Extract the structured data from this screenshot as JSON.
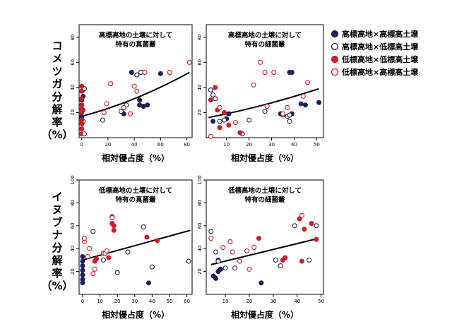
{
  "chart_data": [
    {
      "type": "scatter",
      "title_lines": [
        "高標高地の土壌に対して",
        "特有の真菌叢"
      ],
      "xlabel": "相対優占度（%）",
      "ylabel_lines": [
        "コ",
        "メ",
        "ツ",
        "ガ",
        "分",
        "解",
        "率",
        "（%）"
      ],
      "xlim": [
        -2,
        84
      ],
      "ylim": [
        0,
        90
      ],
      "xticks": [
        0,
        20,
        40,
        60,
        80
      ],
      "yticks": [
        20,
        40,
        60,
        80
      ],
      "trend": {
        "x0": 0,
        "y0": 17,
        "x1": 82,
        "y1": 52,
        "curve": 0.35
      },
      "series": [
        {
          "name": "高標高地×高標高土壌",
          "color": "#1f1f5c",
          "filled": true,
          "points": [
            [
              0,
              15
            ],
            [
              0,
              17
            ],
            [
              0,
              30
            ],
            [
              1,
              33
            ],
            [
              32,
              19
            ],
            [
              38,
              52
            ],
            [
              44,
              26
            ],
            [
              45,
              52
            ],
            [
              44,
              30
            ],
            [
              47,
              25
            ],
            [
              50,
              26
            ],
            [
              60,
              51
            ]
          ]
        },
        {
          "name": "高標高地×低標高土壌",
          "color": "#1f1f5c",
          "filled": false,
          "points": [
            [
              1,
              38
            ],
            [
              2,
              39
            ],
            [
              1,
              13
            ],
            [
              16,
              14
            ],
            [
              30,
              21
            ],
            [
              34,
              26
            ],
            [
              42,
              50
            ],
            [
              45,
              52
            ]
          ]
        },
        {
          "name": "低標高地×低標高土壌",
          "color": "#cc1f2a",
          "filled": true,
          "points": [
            [
              0,
              3
            ],
            [
              0,
              7
            ],
            [
              0,
              11
            ],
            [
              0,
              14
            ],
            [
              0,
              20
            ],
            [
              0,
              23
            ],
            [
              0,
              26
            ],
            [
              0,
              31
            ],
            [
              0,
              37
            ],
            [
              0,
              41
            ],
            [
              1,
              22
            ]
          ]
        },
        {
          "name": "低標高地×高標高土壌",
          "color": "#cc1f2a",
          "filled": false,
          "points": [
            [
              2,
              3
            ],
            [
              17,
              20
            ],
            [
              19,
              27
            ],
            [
              22,
              43
            ],
            [
              32,
              24
            ],
            [
              37,
              19
            ],
            [
              40,
              41
            ],
            [
              42,
              37
            ],
            [
              48,
              52
            ],
            [
              67,
              52
            ],
            [
              82,
              60
            ]
          ]
        }
      ]
    },
    {
      "type": "scatter",
      "title_lines": [
        "高標高地の土壌に対して",
        "特有の細菌叢"
      ],
      "xlabel": "相対優占度（%）",
      "xlim": [
        1,
        53
      ],
      "ylim": [
        0,
        90
      ],
      "xticks": [
        10,
        20,
        30,
        40,
        50
      ],
      "yticks": [
        20,
        40,
        60,
        80
      ],
      "trend": {
        "x0": 2,
        "y0": 16,
        "x1": 51,
        "y1": 39,
        "curve": 0.25
      },
      "series": [
        {
          "name": "高標高地×高標高土壌",
          "color": "#1f1f5c",
          "filled": true,
          "points": [
            [
              4,
              13
            ],
            [
              10,
              15
            ],
            [
              11,
              19
            ],
            [
              34,
              19
            ],
            [
              38,
              52
            ],
            [
              39,
              52
            ],
            [
              39,
              19
            ],
            [
              43,
              27
            ],
            [
              45,
              26
            ],
            [
              51,
              28
            ]
          ]
        },
        {
          "name": "高標高地×低標高土壌",
          "color": "#1f1f5c",
          "filled": false,
          "points": [
            [
              3,
              38
            ],
            [
              4,
              34
            ],
            [
              5,
              31
            ],
            [
              7,
              13
            ],
            [
              9,
              14
            ],
            [
              17,
              3
            ],
            [
              20,
              14
            ],
            [
              27,
              21
            ],
            [
              35,
              18
            ],
            [
              37,
              17
            ],
            [
              38,
              13
            ],
            [
              38,
              18
            ]
          ]
        },
        {
          "name": "低標高地×低標高土壌",
          "color": "#cc1f2a",
          "filled": true,
          "points": [
            [
              3,
              30
            ],
            [
              5,
              40
            ],
            [
              6,
              22
            ],
            [
              7,
              8
            ],
            [
              9,
              20
            ],
            [
              11,
              10
            ],
            [
              16,
              4
            ]
          ]
        },
        {
          "name": "低標高地×高標高土壌",
          "color": "#cc1f2a",
          "filled": false,
          "points": [
            [
              3,
              1
            ],
            [
              7,
              24
            ],
            [
              14,
              12
            ],
            [
              22,
              42
            ],
            [
              25,
              60
            ],
            [
              27,
              52
            ],
            [
              28,
              25
            ],
            [
              31,
              52
            ],
            [
              35,
              19
            ],
            [
              37,
              24
            ],
            [
              44,
              33
            ],
            [
              46,
              44
            ]
          ]
        }
      ]
    },
    {
      "type": "scatter",
      "title_lines": [
        "低標高地の土壌に対して",
        "特有の真菌叢"
      ],
      "xlabel": "相対優占度（%）",
      "ylabel_lines": [
        "イ",
        "ヌ",
        "ブ",
        "ナ",
        "分",
        "解",
        "率",
        "（%）"
      ],
      "xlim": [
        -2,
        63
      ],
      "ylim": [
        0,
        100
      ],
      "xticks": [
        0,
        10,
        20,
        30,
        40,
        50,
        60
      ],
      "yticks": [
        20,
        40,
        60,
        80,
        100
      ],
      "trend": {
        "x0": 0,
        "y0": 30,
        "x1": 62,
        "y1": 56,
        "curve": 0
      },
      "series": [
        {
          "name": "高標高地×高標高土壌",
          "color": "#1f1f5c",
          "filled": true,
          "points": [
            [
              0,
              10
            ],
            [
              0,
              13
            ],
            [
              0,
              17
            ],
            [
              0,
              21
            ],
            [
              0,
              25
            ],
            [
              0,
              29
            ],
            [
              0,
              33
            ],
            [
              38,
              10
            ]
          ]
        },
        {
          "name": "高標高地×低標高土壌",
          "color": "#1f1f5c",
          "filled": false,
          "points": [
            [
              6,
              55
            ],
            [
              12,
              30
            ],
            [
              20,
              19
            ],
            [
              26,
              37
            ],
            [
              35,
              59
            ],
            [
              40,
              24
            ],
            [
              61,
              29
            ]
          ]
        },
        {
          "name": "低標高地×低標高土壌",
          "color": "#cc1f2a",
          "filled": true,
          "points": [
            [
              7,
              29
            ],
            [
              8,
              31
            ],
            [
              15,
              32
            ],
            [
              17,
              62
            ],
            [
              17,
              68
            ],
            [
              18,
              60
            ],
            [
              18,
              56
            ],
            [
              37,
              50
            ],
            [
              43,
              47
            ]
          ]
        },
        {
          "name": "低標高地×高標高土壌",
          "color": "#cc1f2a",
          "filled": false,
          "points": [
            [
              1,
              46
            ],
            [
              1,
              49
            ],
            [
              3,
              33
            ],
            [
              4,
              40
            ],
            [
              6,
              18
            ],
            [
              7,
              22
            ],
            [
              12,
              36
            ],
            [
              13,
              36
            ],
            [
              14,
              38
            ],
            [
              17,
              67
            ]
          ]
        }
      ]
    },
    {
      "type": "scatter",
      "title_lines": [
        "低標高地の土壌に対して",
        "特有の細菌叢"
      ],
      "xlabel": "相対優占度（%）",
      "xlim": [
        2,
        51
      ],
      "ylim": [
        0,
        100
      ],
      "xticks": [
        10,
        20,
        30,
        40,
        50
      ],
      "yticks": [
        20,
        40,
        60,
        80,
        100
      ],
      "trend": {
        "x0": 4,
        "y0": 26,
        "x1": 49,
        "y1": 49,
        "curve": 0
      },
      "series": [
        {
          "name": "高標高地×高標高土壌",
          "color": "#1f1f5c",
          "filled": true,
          "points": [
            [
              5,
              16
            ],
            [
              6,
              14
            ],
            [
              7,
              20
            ],
            [
              7,
              30
            ],
            [
              8,
              22
            ],
            [
              25,
              10
            ]
          ]
        },
        {
          "name": "高標高地×低標高土壌",
          "color": "#1f1f5c",
          "filled": false,
          "points": [
            [
              4,
              55
            ],
            [
              6,
              37
            ],
            [
              7,
              29
            ],
            [
              10,
              23
            ],
            [
              14,
              23
            ],
            [
              31,
              30
            ],
            [
              33,
              25
            ],
            [
              39,
              60
            ],
            [
              45,
              30
            ],
            [
              48,
              60
            ]
          ]
        },
        {
          "name": "低標高地×低標高土壌",
          "color": "#cc1f2a",
          "filled": true,
          "points": [
            [
              24,
              49
            ],
            [
              34,
              30
            ],
            [
              35,
              32
            ],
            [
              41,
              66
            ],
            [
              42,
              29
            ],
            [
              43,
              57
            ],
            [
              46,
              62
            ],
            [
              48,
              48
            ]
          ]
        },
        {
          "name": "低標高地×高標高土壌",
          "color": "#cc1f2a",
          "filled": false,
          "points": [
            [
              4,
              49
            ],
            [
              9,
              41
            ],
            [
              12,
              46
            ],
            [
              13,
              37
            ],
            [
              16,
              29
            ],
            [
              19,
              38
            ],
            [
              20,
              22
            ],
            [
              22,
              41
            ],
            [
              42,
              69
            ]
          ]
        }
      ]
    }
  ],
  "legend": [
    {
      "label": "高標高地×高標高土壌",
      "color": "#1f1f5c",
      "filled": true
    },
    {
      "label": "高標高地×低標高土壌",
      "color": "#1f1f5c",
      "filled": false
    },
    {
      "label": "低標高地×低標高土壌",
      "color": "#cc1f2a",
      "filled": true
    },
    {
      "label": "低標高地×高標高土壌",
      "color": "#cc1f2a",
      "filled": false
    }
  ]
}
